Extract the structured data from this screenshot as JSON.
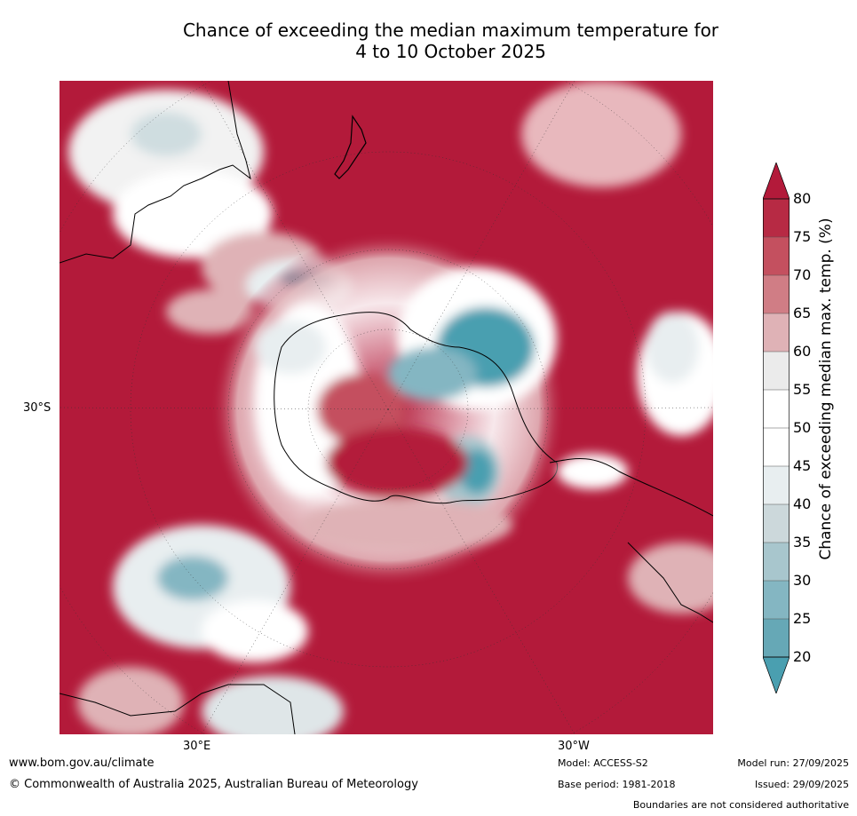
{
  "title_line1": "Chance of exceeding the median maximum temperature for",
  "title_line2": "4 to 10 October 2025",
  "map": {
    "labels": {
      "lat_30s": "30°S",
      "lon_30e": "30°E",
      "lon_30w": "30°W"
    },
    "projection": "south polar stereographic",
    "colors": {
      "high": "#b31a3a",
      "neutral": "#ffffff",
      "low": "#4a9fb0"
    }
  },
  "colorbar": {
    "title": "Chance of exceeding median max. temp. (%)",
    "ticks": [
      "80",
      "75",
      "70",
      "65",
      "60",
      "55",
      "50",
      "45",
      "40",
      "35",
      "30",
      "25",
      "20"
    ],
    "bands": [
      "#b72a44",
      "#c4505f",
      "#d07d85",
      "#dfb2b6",
      "#ebebeb",
      "#ffffff",
      "#ffffff",
      "#e8eef0",
      "#ccd8db",
      "#a8c6cd",
      "#84b6c2",
      "#66a8b6"
    ],
    "extend_colors": {
      "top": "#b31a3a",
      "bottom": "#4a9fb0"
    }
  },
  "footer": {
    "website": "www.bom.gov.au/climate",
    "copyright": "© Commonwealth of Australia 2025, Australian Bureau of Meteorology",
    "model": "Model: ACCESS-S2",
    "base_period": "Base period: 1981-2018",
    "model_run": "Model run: 27/09/2025",
    "issued": "Issued: 29/09/2025",
    "disclaimer": "Boundaries are not considered authoritative"
  }
}
